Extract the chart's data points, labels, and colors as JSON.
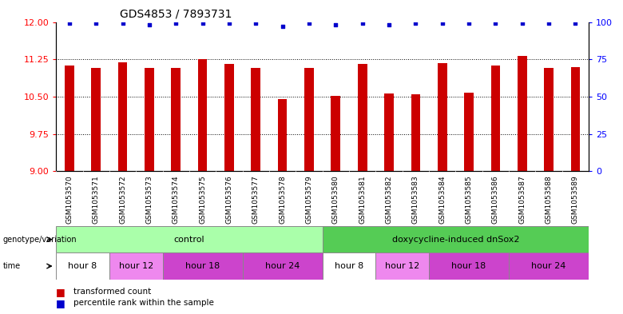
{
  "title": "GDS4853 / 7893731",
  "samples": [
    "GSM1053570",
    "GSM1053571",
    "GSM1053572",
    "GSM1053573",
    "GSM1053574",
    "GSM1053575",
    "GSM1053576",
    "GSM1053577",
    "GSM1053578",
    "GSM1053579",
    "GSM1053580",
    "GSM1053581",
    "GSM1053582",
    "GSM1053583",
    "GSM1053584",
    "GSM1053585",
    "GSM1053586",
    "GSM1053587",
    "GSM1053588",
    "GSM1053589"
  ],
  "bar_values": [
    11.12,
    11.08,
    11.19,
    11.07,
    11.07,
    11.25,
    11.16,
    11.08,
    10.45,
    11.07,
    10.52,
    11.15,
    10.56,
    10.54,
    11.17,
    10.57,
    11.13,
    11.32,
    11.08,
    11.1
  ],
  "percentile_values": [
    99,
    99,
    99,
    98,
    99,
    99,
    99,
    99,
    97,
    99,
    98,
    99,
    98,
    99,
    99,
    99,
    99,
    99,
    99,
    99
  ],
  "ylim_left": [
    9,
    12
  ],
  "ylim_right": [
    0,
    100
  ],
  "yticks_left": [
    9,
    9.75,
    10.5,
    11.25,
    12
  ],
  "yticks_right": [
    0,
    25,
    50,
    75,
    100
  ],
  "bar_color": "#CC0000",
  "dot_color": "#0000CC",
  "bg_color": "#FFFFFF",
  "xlabel_bg": "#DDDDDD",
  "genotype_groups": [
    {
      "text": "control",
      "start": 0,
      "end": 9,
      "facecolor": "#AAFFAA",
      "edgecolor": "#888888"
    },
    {
      "text": "doxycycline-induced dnSox2",
      "start": 10,
      "end": 19,
      "facecolor": "#55CC55",
      "edgecolor": "#888888"
    }
  ],
  "time_groups": [
    {
      "text": "hour 8",
      "start": 0,
      "end": 1,
      "facecolor": "#FFFFFF",
      "edgecolor": "#888888"
    },
    {
      "text": "hour 12",
      "start": 2,
      "end": 3,
      "facecolor": "#EE88EE",
      "edgecolor": "#888888"
    },
    {
      "text": "hour 18",
      "start": 4,
      "end": 6,
      "facecolor": "#CC44CC",
      "edgecolor": "#888888"
    },
    {
      "text": "hour 24",
      "start": 7,
      "end": 9,
      "facecolor": "#CC44CC",
      "edgecolor": "#888888"
    },
    {
      "text": "hour 8",
      "start": 10,
      "end": 11,
      "facecolor": "#FFFFFF",
      "edgecolor": "#888888"
    },
    {
      "text": "hour 12",
      "start": 12,
      "end": 13,
      "facecolor": "#EE88EE",
      "edgecolor": "#888888"
    },
    {
      "text": "hour 18",
      "start": 14,
      "end": 16,
      "facecolor": "#CC44CC",
      "edgecolor": "#888888"
    },
    {
      "text": "hour 24",
      "start": 17,
      "end": 19,
      "facecolor": "#CC44CC",
      "edgecolor": "#888888"
    }
  ],
  "legend_items": [
    {
      "label": "transformed count",
      "color": "#CC0000"
    },
    {
      "label": "percentile rank within the sample",
      "color": "#0000CC"
    }
  ]
}
